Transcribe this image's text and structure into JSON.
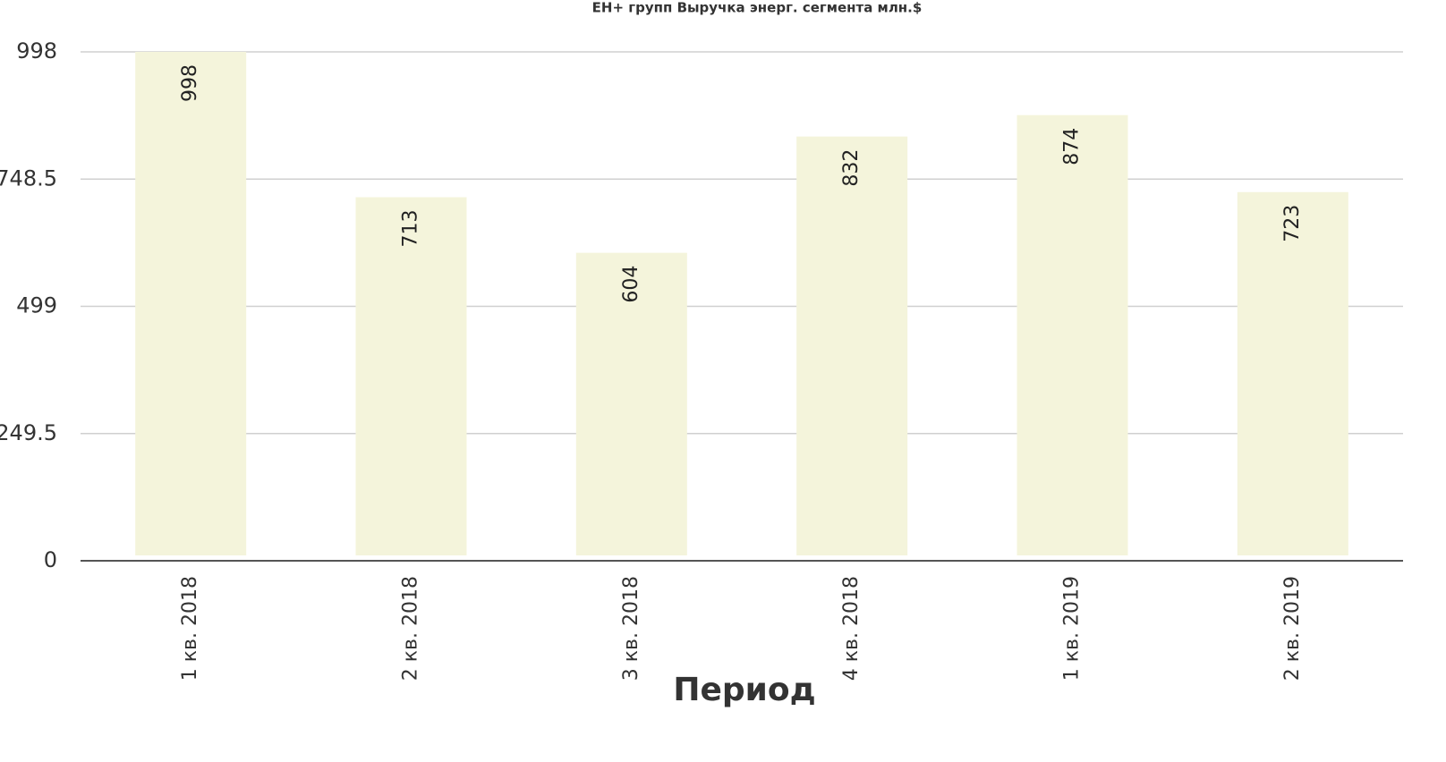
{
  "chart_data": {
    "type": "bar",
    "title": "ЕН+ групп Выручка энерг. сегмента млн.$",
    "x_label": "Период",
    "categories": [
      "1 кв. 2018",
      "2 кв. 2018",
      "3 кв. 2018",
      "4 кв. 2018",
      "1 кв. 2019",
      "2 кв. 2019"
    ],
    "values": [
      998,
      713,
      604,
      832,
      874,
      723
    ],
    "color": "#f4f4db",
    "ylim": [
      0,
      998
    ],
    "yticks": [
      0,
      249.5,
      499,
      748.5,
      998
    ],
    "grid": true
  }
}
